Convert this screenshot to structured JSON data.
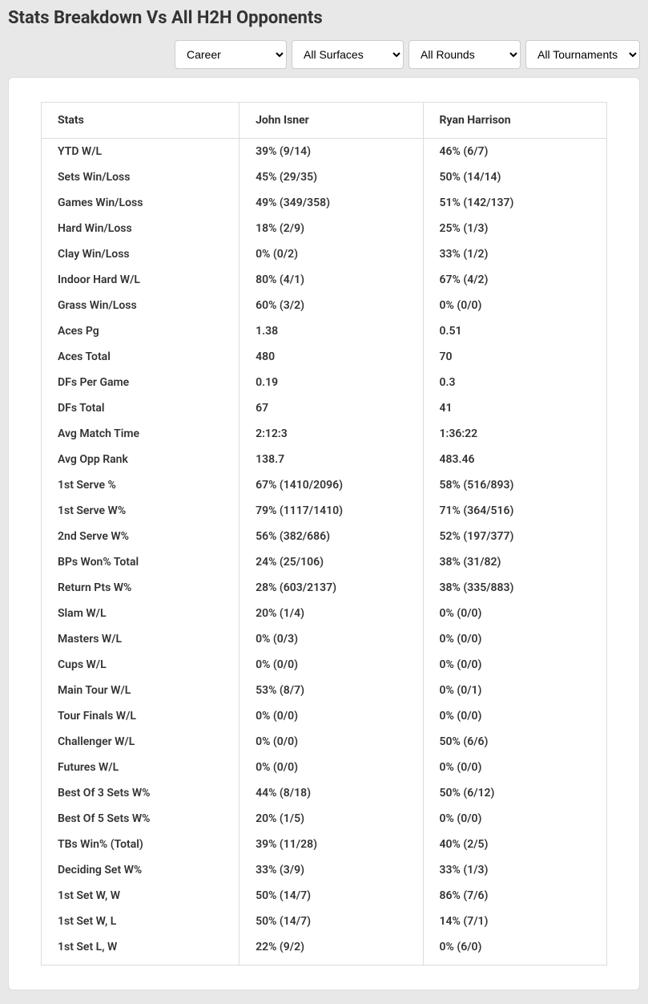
{
  "title": "Stats Breakdown Vs All H2H Opponents",
  "filters": {
    "timeframe": "Career",
    "surface": "All Surfaces",
    "round": "All Rounds",
    "tournament": "All Tournaments"
  },
  "table": {
    "headers": {
      "stats": "Stats",
      "player1": "John Isner",
      "player2": "Ryan Harrison"
    },
    "rows": [
      {
        "stat": "YTD W/L",
        "p1": "39% (9/14)",
        "p2": "46% (6/7)"
      },
      {
        "stat": "Sets Win/Loss",
        "p1": "45% (29/35)",
        "p2": "50% (14/14)"
      },
      {
        "stat": "Games Win/Loss",
        "p1": "49% (349/358)",
        "p2": "51% (142/137)"
      },
      {
        "stat": "Hard Win/Loss",
        "p1": "18% (2/9)",
        "p2": "25% (1/3)"
      },
      {
        "stat": "Clay Win/Loss",
        "p1": "0% (0/2)",
        "p2": "33% (1/2)"
      },
      {
        "stat": "Indoor Hard W/L",
        "p1": "80% (4/1)",
        "p2": "67% (4/2)"
      },
      {
        "stat": "Grass Win/Loss",
        "p1": "60% (3/2)",
        "p2": "0% (0/0)"
      },
      {
        "stat": "Aces Pg",
        "p1": "1.38",
        "p2": "0.51"
      },
      {
        "stat": "Aces Total",
        "p1": "480",
        "p2": "70"
      },
      {
        "stat": "DFs Per Game",
        "p1": "0.19",
        "p2": "0.3"
      },
      {
        "stat": "DFs Total",
        "p1": "67",
        "p2": "41"
      },
      {
        "stat": "Avg Match Time",
        "p1": "2:12:3",
        "p2": "1:36:22"
      },
      {
        "stat": "Avg Opp Rank",
        "p1": "138.7",
        "p2": "483.46"
      },
      {
        "stat": "1st Serve %",
        "p1": "67% (1410/2096)",
        "p2": "58% (516/893)"
      },
      {
        "stat": "1st Serve W%",
        "p1": "79% (1117/1410)",
        "p2": "71% (364/516)"
      },
      {
        "stat": "2nd Serve W%",
        "p1": "56% (382/686)",
        "p2": "52% (197/377)"
      },
      {
        "stat": "BPs Won% Total",
        "p1": "24% (25/106)",
        "p2": "38% (31/82)"
      },
      {
        "stat": "Return Pts W%",
        "p1": "28% (603/2137)",
        "p2": "38% (335/883)"
      },
      {
        "stat": "Slam W/L",
        "p1": "20% (1/4)",
        "p2": "0% (0/0)"
      },
      {
        "stat": "Masters W/L",
        "p1": "0% (0/3)",
        "p2": "0% (0/0)"
      },
      {
        "stat": "Cups W/L",
        "p1": "0% (0/0)",
        "p2": "0% (0/0)"
      },
      {
        "stat": "Main Tour W/L",
        "p1": "53% (8/7)",
        "p2": "0% (0/1)"
      },
      {
        "stat": "Tour Finals W/L",
        "p1": "0% (0/0)",
        "p2": "0% (0/0)"
      },
      {
        "stat": "Challenger W/L",
        "p1": "0% (0/0)",
        "p2": "50% (6/6)"
      },
      {
        "stat": "Futures W/L",
        "p1": "0% (0/0)",
        "p2": "0% (0/0)"
      },
      {
        "stat": "Best Of 3 Sets W%",
        "p1": "44% (8/18)",
        "p2": "50% (6/12)"
      },
      {
        "stat": "Best Of 5 Sets W%",
        "p1": "20% (1/5)",
        "p2": "0% (0/0)"
      },
      {
        "stat": "TBs Win% (Total)",
        "p1": "39% (11/28)",
        "p2": "40% (2/5)"
      },
      {
        "stat": "Deciding Set W%",
        "p1": "33% (3/9)",
        "p2": "33% (1/3)"
      },
      {
        "stat": "1st Set W, W",
        "p1": "50% (14/7)",
        "p2": "86% (7/6)"
      },
      {
        "stat": "1st Set W, L",
        "p1": "50% (14/7)",
        "p2": "14% (7/1)"
      },
      {
        "stat": "1st Set L, W",
        "p1": "22% (9/2)",
        "p2": "0% (6/0)"
      }
    ]
  }
}
